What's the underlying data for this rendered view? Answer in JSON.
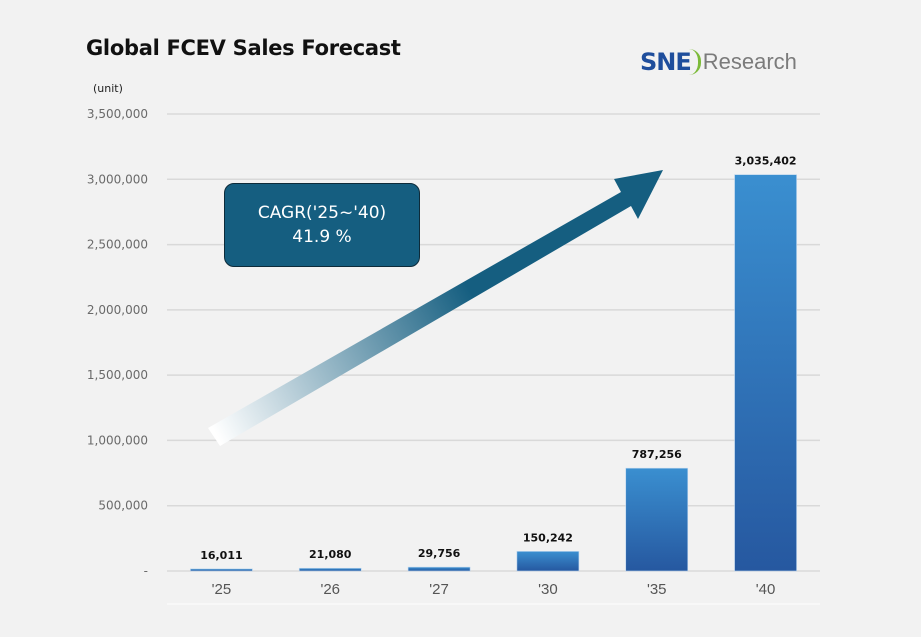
{
  "header": {
    "title": "Global FCEV Sales Forecast",
    "logo_primary": "SNE",
    "logo_secondary": "Research"
  },
  "colors": {
    "bar_top": "#3a8fd0",
    "bar_bottom": "#2658a0",
    "arrow_dark": "#155e80",
    "arrow_light": "#ffffff",
    "callout_bg": "#155e80",
    "grid": "#d9d9d9",
    "background": "#f2f2f2"
  },
  "callout": {
    "line1": "CAGR('25~'40)",
    "line2": "41.9 %"
  },
  "chart_data": {
    "type": "bar",
    "title": "Global FCEV Sales Forecast",
    "ylabel": "(unit)",
    "xlabel": "",
    "categories": [
      "'25",
      "'26",
      "'27",
      "'30",
      "'35",
      "'40"
    ],
    "values": [
      16011,
      21080,
      29756,
      150242,
      787256,
      3035402
    ],
    "data_labels": [
      "16,011",
      "21,080",
      "29,756",
      "150,242",
      "787,256",
      "3,035,402"
    ],
    "ylim": [
      0,
      3500000
    ],
    "yticks": [
      0,
      500000,
      1000000,
      1500000,
      2000000,
      2500000,
      3000000,
      3500000
    ],
    "ytick_labels": [
      "-",
      "500,000",
      "1,000,000",
      "1,500,000",
      "2,000,000",
      "2,500,000",
      "3,000,000",
      "3,500,000"
    ],
    "grid": true,
    "legend": "none",
    "annotations": [
      "CAGR('25~'40) 41.9 %"
    ]
  }
}
